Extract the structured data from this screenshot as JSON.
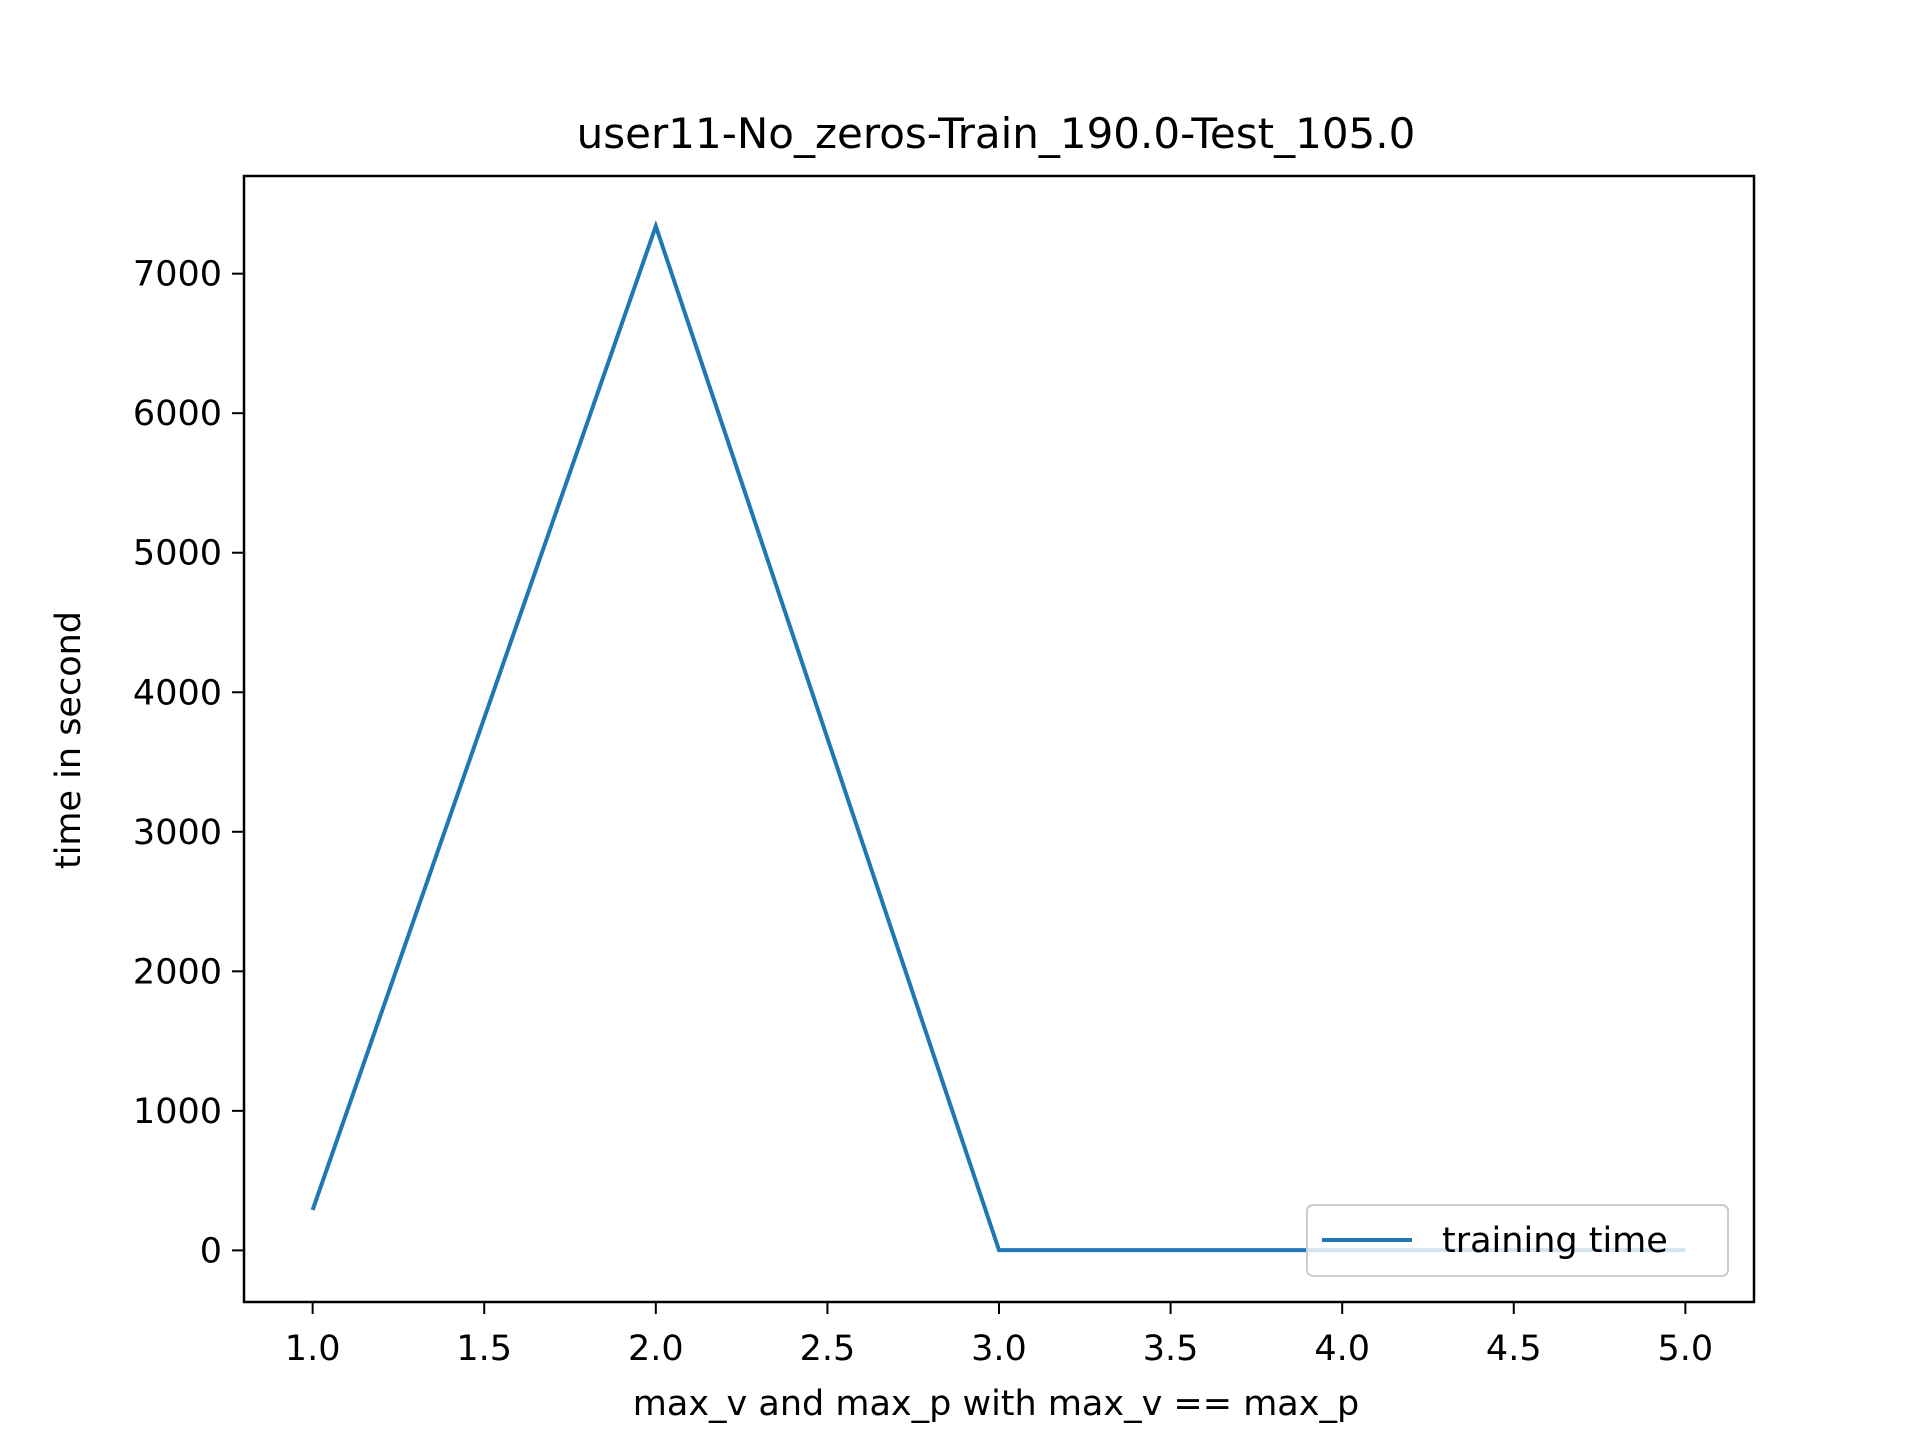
{
  "chart_data": {
    "type": "line",
    "title": "user11-No_zeros-Train_190.0-Test_105.0",
    "xlabel": "max_v and max_p with max_v == max_p",
    "ylabel": "time in second",
    "x": [
      1.0,
      2.0,
      3.0,
      4.0,
      5.0
    ],
    "series": [
      {
        "name": "training time",
        "values": [
          290,
          7340,
          2,
          2,
          2
        ],
        "color": "#1f77b4"
      }
    ],
    "xlim": [
      0.8,
      5.2
    ],
    "ylim": [
      -370,
      7700
    ],
    "xticks": [
      1.0,
      1.5,
      2.0,
      2.5,
      3.0,
      3.5,
      4.0,
      4.5,
      5.0
    ],
    "xtick_labels": [
      "1.0",
      "1.5",
      "2.0",
      "2.5",
      "3.0",
      "3.5",
      "4.0",
      "4.5",
      "5.0"
    ],
    "yticks": [
      0,
      1000,
      2000,
      3000,
      4000,
      5000,
      6000,
      7000
    ],
    "ytick_labels": [
      "0",
      "1000",
      "2000",
      "3000",
      "4000",
      "5000",
      "6000",
      "7000"
    ],
    "grid": false,
    "legend_position": "lower right"
  }
}
